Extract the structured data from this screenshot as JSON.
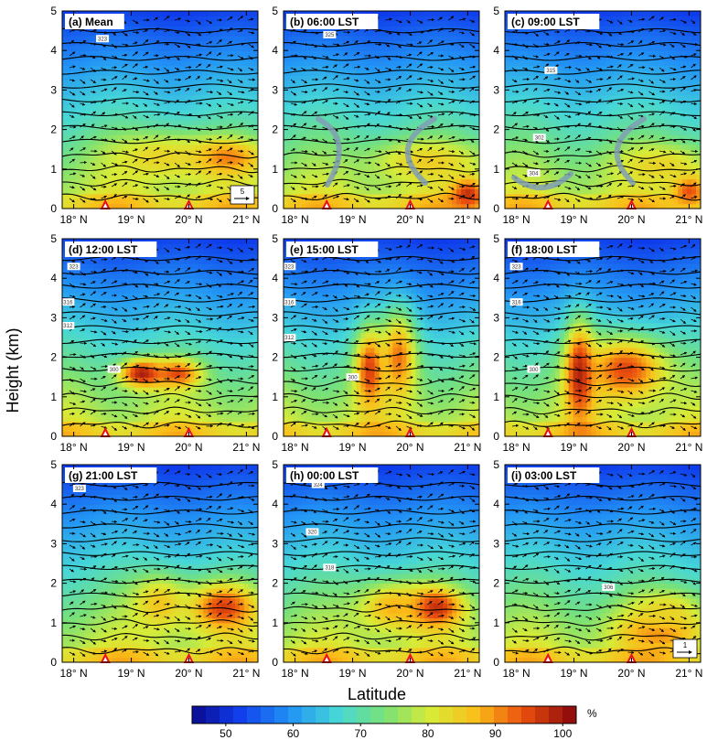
{
  "chart_data": {
    "type": "heatmap",
    "ylabel": "Height (km)",
    "xlabel": "Latitude",
    "ylim": [
      0,
      5
    ],
    "yticks": [
      "0",
      "1",
      "2",
      "3",
      "4",
      "5"
    ],
    "xlim": [
      17.8,
      21.2
    ],
    "xticks": [
      {
        "value": 18,
        "label": "18° N"
      },
      {
        "value": 19,
        "label": "19° N"
      },
      {
        "value": 20,
        "label": "20° N"
      },
      {
        "value": 21,
        "label": "21° N"
      }
    ],
    "colorbar": {
      "min": 45,
      "max": 102,
      "ticks": [
        "50",
        "60",
        "70",
        "80",
        "90",
        "100"
      ],
      "unit": "%"
    },
    "mountains": [
      18.55,
      20.0
    ],
    "reference_vectors": [
      {
        "panel": 0,
        "label": "5"
      },
      {
        "panel": 8,
        "label": "1"
      }
    ],
    "panels": [
      {
        "label": "(a) Mean",
        "contour_labels": [
          {
            "text": "323",
            "lat": 18.5,
            "h": 4.3
          }
        ],
        "moist": [
          {
            "lat": 20.6,
            "h": 1.3,
            "sx": 0.7,
            "sy": 0.45,
            "v": 93
          },
          {
            "lat": 19.5,
            "h": 1.3,
            "sx": 0.9,
            "sy": 0.6,
            "v": 84
          }
        ]
      },
      {
        "label": "(b) 06:00 LST",
        "contour_labels": [
          {
            "text": "325",
            "lat": 18.6,
            "h": 4.4
          }
        ],
        "moist": [
          {
            "lat": 21.0,
            "h": 0.4,
            "sx": 0.3,
            "sy": 0.4,
            "v": 98
          },
          {
            "lat": 20.3,
            "h": 1.2,
            "sx": 0.9,
            "sy": 0.5,
            "v": 85
          }
        ]
      },
      {
        "label": "(c) 09:00 LST",
        "contour_labels": [
          {
            "text": "315",
            "lat": 18.6,
            "h": 3.5
          },
          {
            "text": "302",
            "lat": 18.4,
            "h": 1.8
          },
          {
            "text": "304",
            "lat": 18.3,
            "h": 0.9
          }
        ],
        "moist": [
          {
            "lat": 21.0,
            "h": 0.5,
            "sx": 0.3,
            "sy": 0.4,
            "v": 96
          },
          {
            "lat": 20.5,
            "h": 1.1,
            "sx": 0.8,
            "sy": 0.5,
            "v": 84
          }
        ]
      },
      {
        "label": "(d) 12:00 LST",
        "contour_labels": [
          {
            "text": "323",
            "lat": 18.0,
            "h": 4.3
          },
          {
            "text": "316",
            "lat": 17.9,
            "h": 3.4
          },
          {
            "text": "312",
            "lat": 17.9,
            "h": 2.8
          },
          {
            "text": "300",
            "lat": 18.7,
            "h": 1.7
          }
        ],
        "moist": [
          {
            "lat": 19.2,
            "h": 1.6,
            "sx": 0.4,
            "sy": 0.35,
            "v": 100
          },
          {
            "lat": 19.8,
            "h": 1.6,
            "sx": 0.4,
            "sy": 0.35,
            "v": 95
          }
        ]
      },
      {
        "label": "(e) 15:00 LST",
        "contour_labels": [
          {
            "text": "323",
            "lat": 17.9,
            "h": 4.3
          },
          {
            "text": "316",
            "lat": 17.9,
            "h": 3.4
          },
          {
            "text": "312",
            "lat": 17.9,
            "h": 2.5
          },
          {
            "text": "300",
            "lat": 19.0,
            "h": 1.5
          }
        ],
        "moist": [
          {
            "lat": 19.3,
            "h": 1.7,
            "sx": 0.25,
            "sy": 1.0,
            "v": 96
          },
          {
            "lat": 19.8,
            "h": 2.0,
            "sx": 0.3,
            "sy": 1.1,
            "v": 92
          }
        ]
      },
      {
        "label": "(f) 18:00 LST",
        "contour_labels": [
          {
            "text": "323",
            "lat": 18.0,
            "h": 4.3
          },
          {
            "text": "316",
            "lat": 18.0,
            "h": 3.4
          },
          {
            "text": "300",
            "lat": 18.3,
            "h": 1.7
          }
        ],
        "moist": [
          {
            "lat": 19.1,
            "h": 1.6,
            "sx": 0.25,
            "sy": 1.2,
            "v": 100
          },
          {
            "lat": 19.9,
            "h": 1.7,
            "sx": 0.7,
            "sy": 0.8,
            "v": 95
          }
        ]
      },
      {
        "label": "(g) 21:00 LST",
        "contour_labels": [
          {
            "text": "323",
            "lat": 18.1,
            "h": 4.4
          }
        ],
        "moist": [
          {
            "lat": 20.6,
            "h": 1.4,
            "sx": 0.6,
            "sy": 0.6,
            "v": 96
          },
          {
            "lat": 19.5,
            "h": 1.5,
            "sx": 0.5,
            "sy": 0.7,
            "v": 86
          }
        ]
      },
      {
        "label": "(h) 00:00 LST",
        "contour_labels": [
          {
            "text": "324",
            "lat": 18.4,
            "h": 4.5
          },
          {
            "text": "320",
            "lat": 18.3,
            "h": 3.3
          },
          {
            "text": "318",
            "lat": 18.6,
            "h": 2.4
          }
        ],
        "moist": [
          {
            "lat": 20.4,
            "h": 1.4,
            "sx": 0.5,
            "sy": 0.5,
            "v": 100
          },
          {
            "lat": 19.7,
            "h": 1.4,
            "sx": 0.6,
            "sy": 0.6,
            "v": 88
          }
        ]
      },
      {
        "label": "(i) 03:00 LST",
        "contour_labels": [
          {
            "text": "306",
            "lat": 19.6,
            "h": 1.9
          }
        ],
        "moist": [
          {
            "lat": 20.5,
            "h": 0.8,
            "sx": 0.7,
            "sy": 0.5,
            "v": 92
          },
          {
            "lat": 20.6,
            "h": 1.3,
            "sx": 0.6,
            "sy": 0.5,
            "v": 84
          }
        ]
      }
    ]
  }
}
